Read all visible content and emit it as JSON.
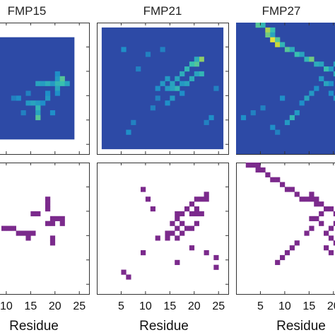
{
  "chart_data": [
    {
      "type": "heatmap",
      "title": "FMP15",
      "n": 21,
      "xlim": [
        0,
        27
      ],
      "ylim": [
        0,
        27
      ],
      "background": "#2d4aa6",
      "cells": [
        [
          14,
          10,
          0.35
        ],
        [
          15,
          10,
          0.32
        ],
        [
          16,
          10,
          0.4
        ],
        [
          17,
          10,
          0.3
        ],
        [
          18,
          10,
          0.45
        ],
        [
          19,
          10,
          0.5
        ],
        [
          20,
          10,
          0.35
        ],
        [
          18,
          9,
          0.3
        ],
        [
          18,
          8,
          0.25
        ],
        [
          19,
          9,
          0.55
        ],
        [
          18,
          11,
          0.35
        ],
        [
          18,
          12,
          0.25
        ],
        [
          12,
          14,
          0.3
        ],
        [
          13,
          14,
          0.35
        ],
        [
          14,
          14,
          0.3
        ],
        [
          15,
          14,
          0.25
        ],
        [
          14,
          15,
          0.45
        ],
        [
          14,
          16,
          0.35
        ],
        [
          14,
          17,
          0.55
        ],
        [
          10,
          13,
          0.25
        ],
        [
          9,
          13,
          0.2
        ],
        [
          16,
          13,
          0.3
        ],
        [
          16,
          12,
          0.25
        ],
        [
          12,
          12,
          0.2
        ],
        [
          11,
          16,
          0.2
        ],
        [
          17,
          16,
          0.25
        ]
      ]
    },
    {
      "type": "heatmap",
      "title": "FMP21",
      "n": 25,
      "xlim": [
        0,
        27
      ],
      "ylim": [
        0,
        27
      ],
      "background": "#2d4aa6",
      "cells": [
        [
          20,
          8,
          0.55
        ],
        [
          21,
          7,
          0.65
        ],
        [
          20,
          7,
          0.4
        ],
        [
          19,
          8,
          0.5
        ],
        [
          18,
          9,
          0.45
        ],
        [
          17,
          10,
          0.4
        ],
        [
          16,
          11,
          0.35
        ],
        [
          21,
          10,
          0.45
        ],
        [
          20,
          10,
          0.35
        ],
        [
          19,
          11,
          0.4
        ],
        [
          18,
          12,
          0.35
        ],
        [
          17,
          12,
          0.3
        ],
        [
          16,
          13,
          0.45
        ],
        [
          15,
          13,
          0.35
        ],
        [
          14,
          13,
          0.3
        ],
        [
          13,
          12,
          0.3
        ],
        [
          12,
          13,
          0.25
        ],
        [
          14,
          11,
          0.3
        ],
        [
          15,
          12,
          0.35
        ],
        [
          17,
          14,
          0.25
        ],
        [
          15,
          15,
          0.3
        ],
        [
          14,
          16,
          0.25
        ],
        [
          12,
          15,
          0.2
        ],
        [
          23,
          19,
          0.25
        ],
        [
          22,
          20,
          0.2
        ],
        [
          24,
          13,
          0.2
        ],
        [
          10,
          6,
          0.2
        ],
        [
          6,
          22,
          0.25
        ],
        [
          7,
          20,
          0.2
        ],
        [
          5,
          5,
          0.25
        ],
        [
          8,
          9,
          0.2
        ],
        [
          13,
          5,
          0.2
        ],
        [
          11,
          17,
          0.2
        ]
      ]
    },
    {
      "type": "heatmap",
      "title": "FMP27",
      "n": 27,
      "xlim": [
        0,
        27
      ],
      "ylim": [
        0,
        27
      ],
      "background": "#2d4aa6",
      "cells": [
        [
          5,
          1,
          0.55
        ],
        [
          6,
          1,
          0.45
        ],
        [
          7,
          2,
          0.7
        ],
        [
          8,
          2,
          0.5
        ],
        [
          7,
          3,
          0.6
        ],
        [
          8,
          3,
          0.35
        ],
        [
          8,
          4,
          0.9
        ],
        [
          9,
          4,
          0.55
        ],
        [
          9,
          5,
          0.75
        ],
        [
          10,
          5,
          0.45
        ],
        [
          11,
          6,
          0.55
        ],
        [
          12,
          6,
          0.4
        ],
        [
          13,
          7,
          0.5
        ],
        [
          14,
          7,
          0.35
        ],
        [
          15,
          8,
          0.45
        ],
        [
          16,
          8,
          0.6
        ],
        [
          17,
          9,
          0.4
        ],
        [
          18,
          9,
          0.35
        ],
        [
          19,
          10,
          0.5
        ],
        [
          20,
          10,
          0.3
        ],
        [
          21,
          11,
          0.4
        ],
        [
          22,
          11,
          0.35
        ],
        [
          23,
          12,
          0.45
        ],
        [
          24,
          12,
          0.55
        ],
        [
          25,
          12,
          0.65
        ],
        [
          26,
          12,
          0.5
        ],
        [
          21,
          9,
          0.35
        ],
        [
          22,
          8,
          0.3
        ],
        [
          25,
          9,
          0.35
        ],
        [
          26,
          10,
          0.3
        ],
        [
          18,
          12,
          0.3
        ],
        [
          19,
          13,
          0.35
        ],
        [
          20,
          13,
          0.25
        ],
        [
          17,
          14,
          0.25
        ],
        [
          16,
          15,
          0.3
        ],
        [
          15,
          16,
          0.35
        ],
        [
          14,
          17,
          0.25
        ],
        [
          12,
          20,
          0.45
        ],
        [
          11,
          21,
          0.3
        ],
        [
          13,
          19,
          0.3
        ],
        [
          20,
          15,
          0.25
        ],
        [
          21,
          16,
          0.3
        ],
        [
          22,
          17,
          0.25
        ],
        [
          23,
          14,
          0.3
        ],
        [
          24,
          15,
          0.25
        ],
        [
          8,
          22,
          0.25
        ],
        [
          9,
          23,
          0.2
        ],
        [
          2,
          20,
          0.25
        ],
        [
          4,
          19,
          0.2
        ],
        [
          6,
          18,
          0.2
        ],
        [
          10,
          16,
          0.25
        ],
        [
          26,
          21,
          0.2
        ],
        [
          24,
          23,
          0.2
        ]
      ]
    },
    {
      "type": "heatmap",
      "title": "",
      "n": 25,
      "xlabel": "Residue",
      "xlim": [
        0,
        27
      ],
      "ylim": [
        0,
        27
      ],
      "xticks": [
        10,
        15,
        20,
        25
      ],
      "color": "#7b2a8c",
      "cells": [
        [
          18,
          7
        ],
        [
          18,
          8
        ],
        [
          18,
          9
        ],
        [
          15,
          10
        ],
        [
          16,
          10
        ],
        [
          19,
          11
        ],
        [
          20,
          11
        ],
        [
          21,
          11
        ],
        [
          21,
          12
        ],
        [
          18,
          12
        ],
        [
          19,
          12
        ],
        [
          9,
          13
        ],
        [
          10,
          13
        ],
        [
          11,
          13
        ],
        [
          14,
          14
        ],
        [
          14,
          15
        ],
        [
          13,
          14
        ],
        [
          12,
          14
        ],
        [
          15,
          14
        ],
        [
          19,
          15
        ],
        [
          19,
          16
        ]
      ]
    },
    {
      "type": "heatmap",
      "title": "",
      "n": 25,
      "xlabel": "Residue",
      "xlim": [
        0,
        27
      ],
      "ylim": [
        0,
        27
      ],
      "xticks": [
        5,
        10,
        15,
        20,
        25
      ],
      "color": "#7b2a8c",
      "cells": [
        [
          9,
          5
        ],
        [
          10,
          7
        ],
        [
          11,
          9
        ],
        [
          22,
          6
        ],
        [
          20,
          7
        ],
        [
          21,
          7
        ],
        [
          22,
          7
        ],
        [
          19,
          8
        ],
        [
          18,
          9
        ],
        [
          17,
          10
        ],
        [
          16,
          10
        ],
        [
          20,
          9
        ],
        [
          21,
          10
        ],
        [
          20,
          10
        ],
        [
          19,
          10
        ],
        [
          16,
          11
        ],
        [
          17,
          12
        ],
        [
          15,
          12
        ],
        [
          16,
          13
        ],
        [
          15,
          14
        ],
        [
          14,
          14
        ],
        [
          17,
          14
        ],
        [
          16,
          15
        ],
        [
          14,
          15
        ],
        [
          18,
          13
        ],
        [
          19,
          13
        ],
        [
          20,
          12
        ],
        [
          12,
          15
        ],
        [
          19,
          17
        ],
        [
          22,
          18
        ],
        [
          16,
          20
        ],
        [
          24,
          19
        ],
        [
          5,
          22
        ],
        [
          6,
          23
        ],
        [
          9,
          18
        ],
        [
          24,
          21
        ]
      ]
    },
    {
      "type": "heatmap",
      "title": "",
      "n": 27,
      "xlabel": "Residue",
      "xlim": [
        0,
        27
      ],
      "ylim": [
        0,
        27
      ],
      "xticks": [
        5,
        10,
        15,
        20
      ],
      "color": "#7b2a8c",
      "cells": [
        [
          3,
          1
        ],
        [
          4,
          1
        ],
        [
          5,
          1
        ],
        [
          5,
          2
        ],
        [
          6,
          2
        ],
        [
          7,
          3
        ],
        [
          8,
          4
        ],
        [
          9,
          4
        ],
        [
          10,
          5
        ],
        [
          11,
          6
        ],
        [
          12,
          6
        ],
        [
          13,
          7
        ],
        [
          14,
          8
        ],
        [
          15,
          8
        ],
        [
          16,
          8
        ],
        [
          17,
          9
        ],
        [
          18,
          9
        ],
        [
          19,
          10
        ],
        [
          20,
          10
        ],
        [
          21,
          11
        ],
        [
          22,
          11
        ],
        [
          22,
          12
        ],
        [
          21,
          13
        ],
        [
          20,
          14
        ],
        [
          19,
          15
        ],
        [
          20,
          16
        ],
        [
          21,
          17
        ],
        [
          22,
          18
        ],
        [
          16,
          7
        ],
        [
          17,
          8
        ],
        [
          18,
          11
        ],
        [
          17,
          12
        ],
        [
          18,
          13
        ],
        [
          16,
          14
        ],
        [
          15,
          15
        ],
        [
          13,
          17
        ],
        [
          12,
          18
        ],
        [
          11,
          19
        ],
        [
          10,
          20
        ],
        [
          9,
          21
        ],
        [
          19,
          18
        ],
        [
          20,
          19
        ],
        [
          16,
          12
        ]
      ]
    }
  ]
}
